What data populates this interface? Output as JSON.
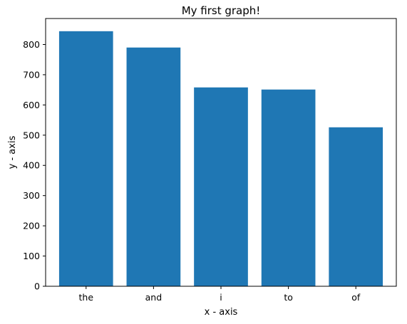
{
  "chart_data": {
    "type": "bar",
    "title": "My first graph!",
    "xlabel": "x - axis",
    "ylabel": "y - axis",
    "categories": [
      "the",
      "and",
      "i",
      "to",
      "of"
    ],
    "values": [
      844,
      790,
      658,
      651,
      526
    ],
    "ylim": [
      0,
      886
    ],
    "yticks": [
      0,
      100,
      200,
      300,
      400,
      500,
      600,
      700,
      800
    ],
    "grid": false,
    "legend": "none",
    "colors": {
      "bar": "#1f77b4",
      "axis": "#000000",
      "background": "#ffffff"
    }
  }
}
